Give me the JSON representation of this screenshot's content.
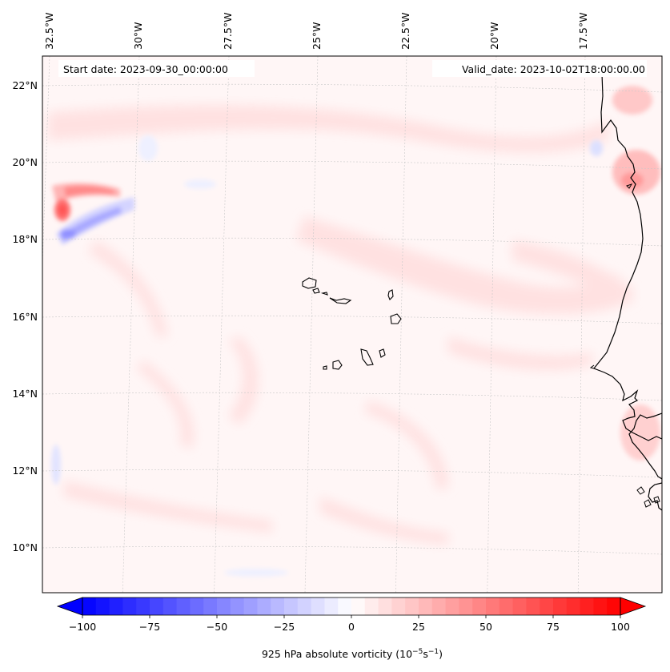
{
  "map": {
    "lon_labels": [
      "32.5°W",
      "30°W",
      "27.5°W",
      "25°W",
      "22.5°W",
      "20°W",
      "17.5°W"
    ],
    "lat_labels": [
      "22°N",
      "20°N",
      "18°N",
      "16°N",
      "14°N",
      "12°N",
      "10°N"
    ],
    "start_date": "Start date: 2023-09-30_00:00:00",
    "valid_date": "Valid_date: 2023-10-02T18:00:00.00",
    "field_colors": {
      "negative": "#0000ff",
      "neutral": "#ffffff",
      "positive": "#ff0000",
      "coastline": "#000000"
    }
  },
  "colorbar": {
    "ticks": [
      "−100",
      "−75",
      "−50",
      "−25",
      "0",
      "25",
      "50",
      "75",
      "100"
    ],
    "tick_values": [
      -100,
      -75,
      -50,
      -25,
      0,
      25,
      50,
      75,
      100
    ],
    "range": [
      -100,
      100
    ],
    "levels": 40,
    "label_main": "925 hPa absolute vorticity (10",
    "label_exp1": "−5",
    "label_mid": "s",
    "label_exp2": "−1",
    "label_end": ")"
  }
}
